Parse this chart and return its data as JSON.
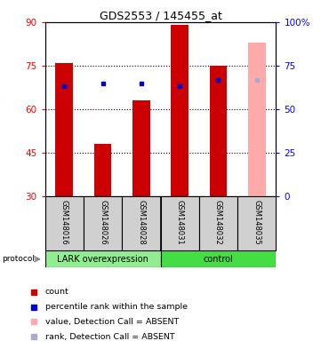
{
  "title": "GDS2553 / 145455_at",
  "samples": [
    "GSM148016",
    "GSM148026",
    "GSM148028",
    "GSM148031",
    "GSM148032",
    "GSM148035"
  ],
  "count_values": [
    76,
    48,
    63,
    89,
    75,
    83
  ],
  "percentile_values": [
    63,
    65,
    65,
    63,
    67,
    67
  ],
  "absent_flags": [
    false,
    false,
    false,
    false,
    false,
    true
  ],
  "groups": [
    {
      "label": "LARK overexpression",
      "start": 0,
      "end": 3,
      "color": "#90ee90"
    },
    {
      "label": "control",
      "start": 3,
      "end": 6,
      "color": "#44dd44"
    }
  ],
  "ylim_left": [
    30,
    90
  ],
  "ylim_right": [
    0,
    100
  ],
  "yticks_left": [
    30,
    45,
    60,
    75,
    90
  ],
  "yticks_right": [
    0,
    25,
    50,
    75,
    100
  ],
  "ytick_labels_right": [
    "0",
    "25",
    "50",
    "75",
    "100%"
  ],
  "bar_color": "#cc0000",
  "bar_absent_color": "#ffaaaa",
  "square_color": "#0000cc",
  "square_absent_color": "#aaaacc",
  "bar_width": 0.45,
  "protocol_label": "protocol",
  "legend_items": [
    {
      "label": "count",
      "color": "#cc0000"
    },
    {
      "label": "percentile rank within the sample",
      "color": "#0000cc"
    },
    {
      "label": "value, Detection Call = ABSENT",
      "color": "#ffaaaa"
    },
    {
      "label": "rank, Detection Call = ABSENT",
      "color": "#aaaacc"
    }
  ],
  "fig_width": 3.61,
  "fig_height": 3.84,
  "dpi": 100
}
